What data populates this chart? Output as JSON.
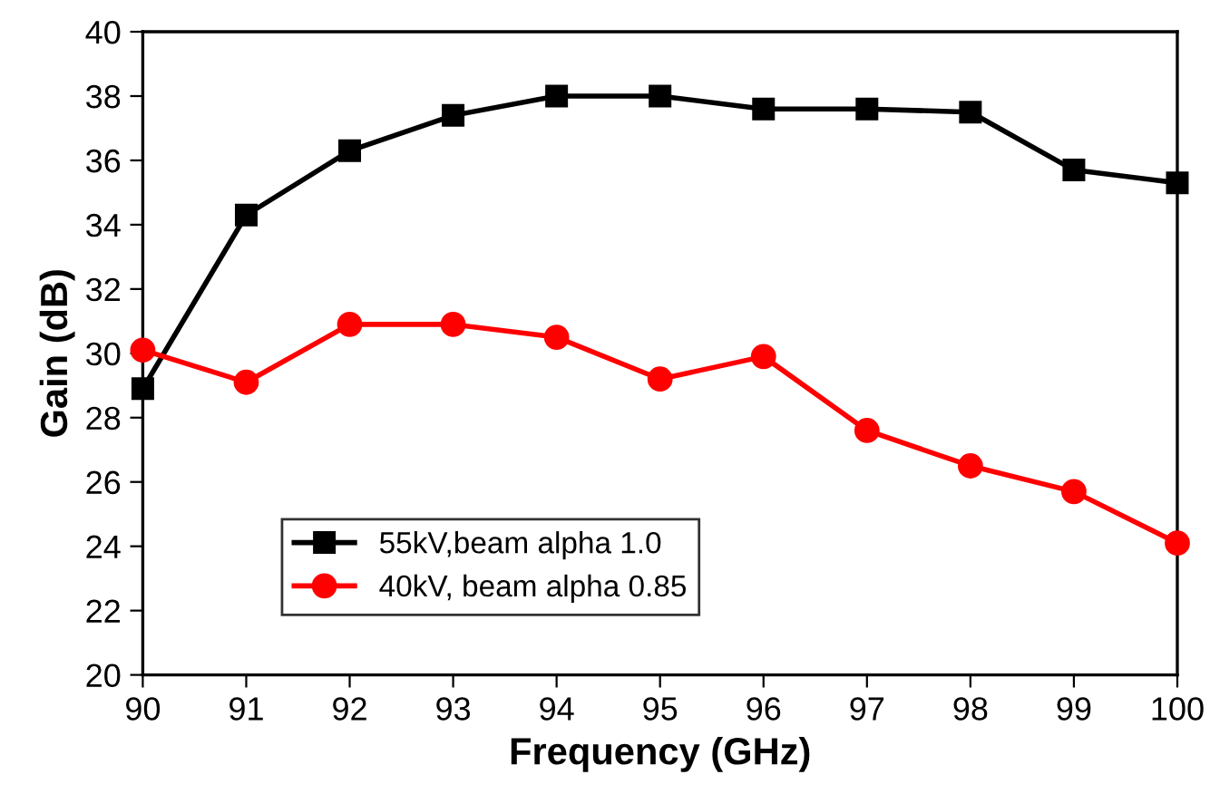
{
  "chart_data": {
    "type": "line",
    "xlabel": "Frequency (GHz)",
    "ylabel": "Gain (dB)",
    "x": [
      90,
      91,
      92,
      93,
      94,
      95,
      96,
      97,
      98,
      99,
      100
    ],
    "series": [
      {
        "name": "55kV,beam alpha 1.0",
        "color": "#000000",
        "marker": "square",
        "values": [
          28.9,
          34.3,
          36.3,
          37.4,
          38.0,
          38.0,
          37.6,
          37.6,
          37.5,
          35.7,
          35.3
        ]
      },
      {
        "name": "40kV, beam alpha 0.85",
        "color": "#ff0000",
        "marker": "circle",
        "values": [
          30.1,
          29.1,
          30.9,
          30.9,
          30.5,
          29.2,
          29.9,
          27.6,
          26.5,
          25.7,
          24.1
        ]
      }
    ],
    "xlim": [
      90,
      100
    ],
    "xticks": [
      90,
      91,
      92,
      93,
      94,
      95,
      96,
      97,
      98,
      99,
      100
    ],
    "ylim": [
      20,
      40
    ],
    "yticks": [
      20,
      22,
      24,
      26,
      28,
      30,
      32,
      34,
      36,
      38,
      40
    ],
    "grid": false,
    "legend": "bottom left",
    "line_style": "solid"
  }
}
